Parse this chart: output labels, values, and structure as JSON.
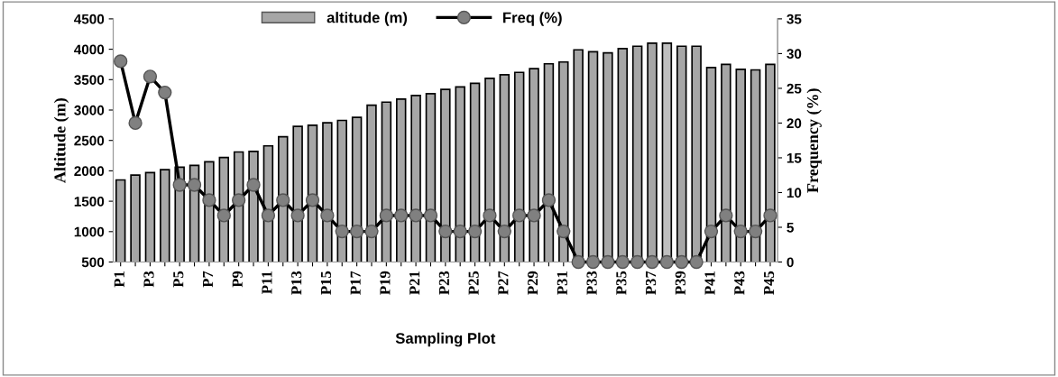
{
  "chart_data": {
    "type": "bar",
    "xlabel": "Sampling Plot",
    "ylabel": "Altitude (m)",
    "y2label": "Frequency (%)",
    "categories": [
      "P1",
      null,
      "P3",
      null,
      "P5",
      null,
      "P7",
      null,
      "P9",
      null,
      "P11",
      null,
      "P13",
      null,
      "P15",
      null,
      "P17",
      null,
      "P19",
      null,
      "P21",
      null,
      "P23",
      null,
      "P25",
      null,
      "P27",
      null,
      "P29",
      null,
      "P31",
      null,
      "P33",
      null,
      "P35",
      null,
      "P37",
      null,
      "P39",
      null,
      "P41",
      null,
      "P43",
      null,
      "P45"
    ],
    "series": [
      {
        "name": "altitude (m)",
        "color": "#a6a6a6",
        "colors": [
          "#a6a6a6",
          "#a6a6a6",
          "#a6a6a6",
          "#a6a6a6",
          "#a6a6a6",
          "#a6a6a6",
          "#a6a6a6",
          "#a6a6a6",
          "#a6a6a6",
          "#a6a6a6",
          "#a6a6a6",
          "#a6a6a6",
          "#a6a6a6",
          "#a6a6a6",
          "#a6a6a6",
          "#a6a6a6",
          "#a6a6a6",
          "#a6a6a6",
          "#a6a6a6",
          "#a6a6a6",
          "#a6a6a6",
          "#a6a6a6",
          "#a6a6a6",
          "#a6a6a6",
          "#a6a6a6",
          "#a6a6a6",
          "#a6a6a6",
          "#a6a6a6",
          "#a6a6a6",
          "#a6a6a6",
          "#a6a6a6",
          "#a6a6a6",
          "#a6a6a6",
          "#a6a6a6",
          "#a6a6a6",
          "#a6a6a6",
          "#a6a6a6",
          "#bfbfbf",
          "#a6a6a6",
          "#a6a6a6",
          "#a6a6a6",
          "#a6a6a6",
          "#a6a6a6",
          "#a6a6a6",
          "#a6a6a6"
        ],
        "values": [
          1850,
          1930,
          1970,
          2020,
          2060,
          2090,
          2150,
          2220,
          2310,
          2320,
          2410,
          2560,
          2730,
          2750,
          2790,
          2830,
          2880,
          3080,
          3130,
          3180,
          3240,
          3270,
          3340,
          3380,
          3440,
          3520,
          3580,
          3620,
          3680,
          3760,
          3790,
          3990,
          3960,
          3940,
          4010,
          4050,
          4100,
          4100,
          4050,
          4050,
          3700,
          3750,
          3670,
          3660,
          3750
        ]
      },
      {
        "name": "Freq (%)",
        "type": "line",
        "axis": "y2",
        "color": "#000000",
        "marker": "circle",
        "line_style": "solid",
        "values": [
          28.9,
          20,
          26.7,
          24.4,
          11.1,
          11.1,
          8.9,
          6.7,
          8.9,
          11.1,
          6.7,
          8.9,
          6.7,
          8.9,
          6.7,
          4.4,
          4.4,
          4.4,
          6.7,
          6.7,
          6.7,
          6.7,
          4.4,
          4.4,
          4.4,
          6.7,
          4.4,
          6.7,
          6.7,
          8.9,
          4.4,
          0,
          0,
          0,
          0,
          0,
          0,
          0,
          0,
          0,
          4.4,
          6.7,
          4.4,
          4.4,
          6.7
        ]
      }
    ],
    "ylim": [
      500,
      4500
    ],
    "yticks": [
      500,
      1000,
      1500,
      2000,
      2500,
      3000,
      3500,
      4000,
      4500
    ],
    "y2lim": [
      0,
      35
    ],
    "y2ticks": [
      0,
      5,
      10,
      15,
      20,
      25,
      30,
      35
    ],
    "grid": false,
    "legend": "top"
  }
}
